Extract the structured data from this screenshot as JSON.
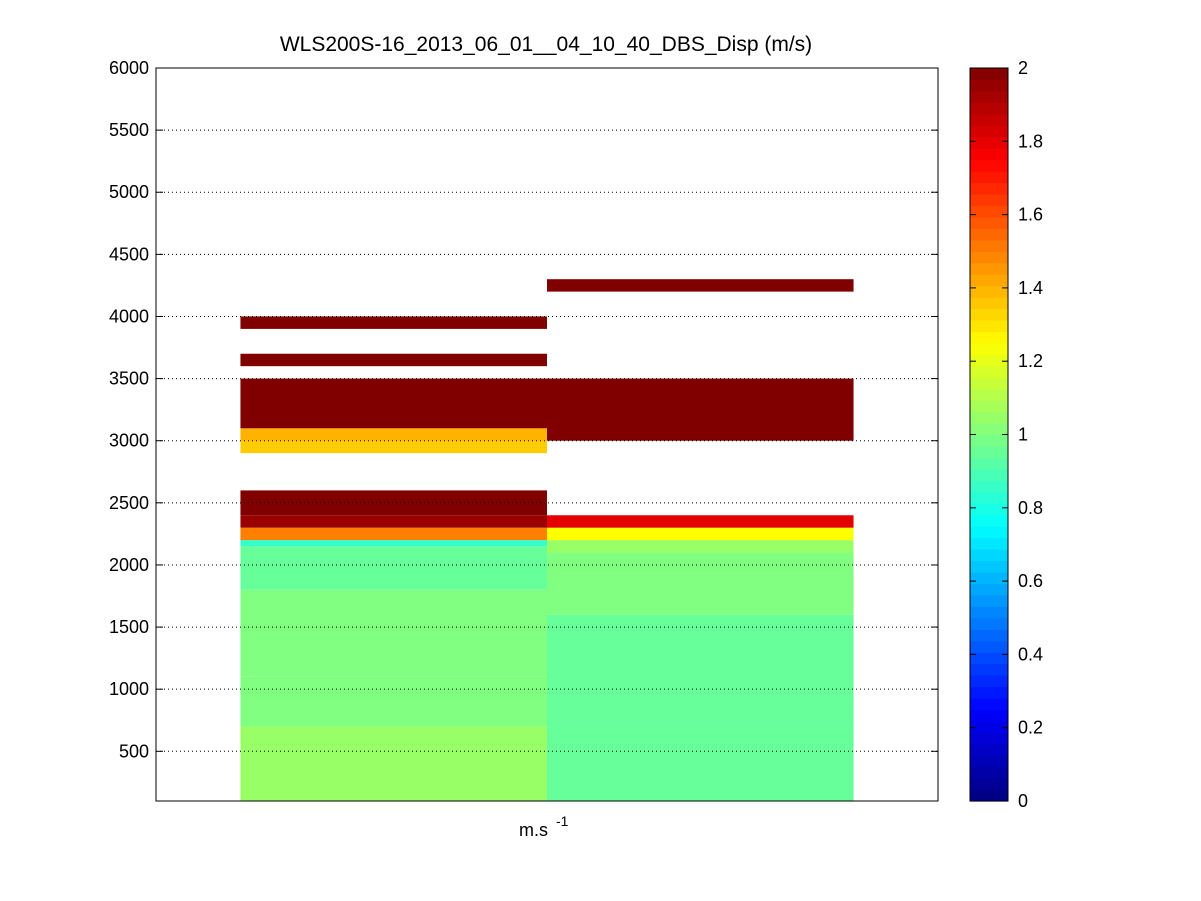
{
  "chart_data": {
    "type": "heatmap",
    "title": "WLS200S-16_2013_06_01__04_10_40_DBS_Disp (m/s)",
    "xlabel_base": "m.s",
    "xlabel_exponent": "-1",
    "ylabel": "",
    "xlim": [
      0.5,
      3.0
    ],
    "ylim": [
      100,
      6000
    ],
    "yticks": [
      500,
      1000,
      1500,
      2000,
      2500,
      3000,
      3500,
      4000,
      4500,
      5000,
      5500,
      6000
    ],
    "grid": "y-dotted",
    "columns": [
      {
        "x_range": [
          0.77,
          1.75
        ],
        "cells": [
          {
            "y0": 100,
            "y1": 700,
            "value": 1.05
          },
          {
            "y0": 700,
            "y1": 1100,
            "value": 1.0
          },
          {
            "y0": 1100,
            "y1": 1800,
            "value": 1.0
          },
          {
            "y0": 1800,
            "y1": 2150,
            "value": 0.95
          },
          {
            "y0": 2150,
            "y1": 2200,
            "value": 0.85
          },
          {
            "y0": 2200,
            "y1": 2300,
            "value": 1.5
          },
          {
            "y0": 2300,
            "y1": 2400,
            "value": 1.95
          },
          {
            "y0": 2400,
            "y1": 2600,
            "value": 2.0
          },
          {
            "y0": 2900,
            "y1": 3000,
            "value": 1.35
          },
          {
            "y0": 3000,
            "y1": 3100,
            "value": 1.4
          },
          {
            "y0": 3100,
            "y1": 3500,
            "value": 2.0
          },
          {
            "y0": 3600,
            "y1": 3700,
            "value": 2.0
          },
          {
            "y0": 3900,
            "y1": 4000,
            "value": 2.0
          }
        ]
      },
      {
        "x_range": [
          1.75,
          2.73
        ],
        "cells": [
          {
            "y0": 100,
            "y1": 700,
            "value": 0.95
          },
          {
            "y0": 700,
            "y1": 1600,
            "value": 0.95
          },
          {
            "y0": 1600,
            "y1": 2100,
            "value": 1.0
          },
          {
            "y0": 2100,
            "y1": 2200,
            "value": 1.05
          },
          {
            "y0": 2200,
            "y1": 2300,
            "value": 1.25
          },
          {
            "y0": 2300,
            "y1": 2400,
            "value": 1.8
          },
          {
            "y0": 3000,
            "y1": 3500,
            "value": 2.0
          },
          {
            "y0": 4200,
            "y1": 4300,
            "value": 2.0
          }
        ]
      }
    ],
    "colorbar": {
      "colormap": "jet",
      "min": 0,
      "max": 2,
      "ticks": [
        0,
        0.2,
        0.4,
        0.6,
        0.8,
        1,
        1.2,
        1.4,
        1.6,
        1.8,
        2
      ]
    }
  }
}
